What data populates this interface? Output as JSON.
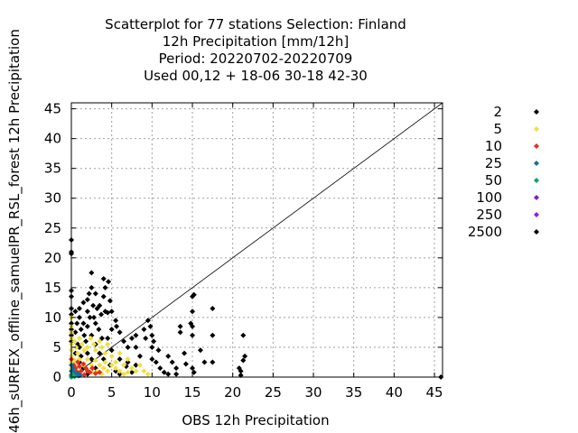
{
  "chart_data": {
    "type": "scatter",
    "title": [
      "Scatterplot for   77 stations Selection: Finland",
      "12h Precipitation [mm/12h]",
      "Period: 20220702-20220709",
      "Used  00,12  + 18-06 30-18 42-30"
    ],
    "xlabel": "OBS 12h Precipitation",
    "ylabel": "46h_sURFEX_offline_samuelPR_RSL_forest 12h Precipitation",
    "xlim": [
      0,
      46
    ],
    "ylim": [
      0,
      46
    ],
    "xticks": [
      0,
      5,
      10,
      15,
      20,
      25,
      30,
      35,
      40,
      45
    ],
    "yticks": [
      0,
      5,
      10,
      15,
      20,
      25,
      30,
      35,
      40,
      45
    ],
    "grid": true,
    "diagonal": true,
    "legend_placement": "right",
    "legend": [
      {
        "label": "2",
        "color": "#000000"
      },
      {
        "label": "5",
        "color": "#f0e040"
      },
      {
        "label": "10",
        "color": "#e03020"
      },
      {
        "label": "25",
        "color": "#1070a0"
      },
      {
        "label": "50",
        "color": "#10a070"
      },
      {
        "label": "100",
        "color": "#8020c0"
      },
      {
        "label": "250",
        "color": "#9020e0"
      },
      {
        "label": "2500",
        "color": "#000000"
      }
    ],
    "series": [
      {
        "level": "2",
        "color": "#000000",
        "points": [
          [
            0,
            23
          ],
          [
            0,
            21
          ],
          [
            0,
            20.7
          ],
          [
            0,
            14.5
          ],
          [
            0,
            13.5
          ],
          [
            0,
            11.5
          ],
          [
            0,
            10.5
          ],
          [
            0,
            9
          ],
          [
            0,
            8
          ],
          [
            0,
            7
          ],
          [
            0,
            6
          ],
          [
            0.5,
            11
          ],
          [
            0.7,
            9
          ],
          [
            0.5,
            7.5
          ],
          [
            1,
            11.5
          ],
          [
            1,
            10
          ],
          [
            1.2,
            8
          ],
          [
            1.5,
            12.5
          ],
          [
            1.5,
            9
          ],
          [
            1.6,
            7
          ],
          [
            2,
            13
          ],
          [
            2.2,
            14
          ],
          [
            2,
            11
          ],
          [
            2.3,
            10
          ],
          [
            2,
            8.5
          ],
          [
            2.5,
            17.5
          ],
          [
            2.5,
            15
          ],
          [
            2.7,
            12
          ],
          [
            2.8,
            10
          ],
          [
            2.5,
            7
          ],
          [
            3,
            14
          ],
          [
            3.2,
            11.5
          ],
          [
            3,
            9
          ],
          [
            3.4,
            8
          ],
          [
            3.5,
            12
          ],
          [
            3.7,
            10.5
          ],
          [
            4,
            16.5
          ],
          [
            4.2,
            15
          ],
          [
            4,
            13.5
          ],
          [
            4.2,
            11
          ],
          [
            4.5,
            10.8
          ],
          [
            4.8,
            12.8
          ],
          [
            4.6,
            16
          ],
          [
            5,
            11
          ],
          [
            5.5,
            9.5
          ],
          [
            5,
            8
          ],
          [
            3.8,
            6.5
          ],
          [
            4.5,
            6.5
          ],
          [
            5.6,
            8.5
          ],
          [
            6,
            7.5
          ],
          [
            6.5,
            6
          ],
          [
            7,
            5
          ],
          [
            7.5,
            6.5
          ],
          [
            8,
            7
          ],
          [
            8,
            5
          ],
          [
            8.5,
            3.5
          ],
          [
            9,
            8
          ],
          [
            9.2,
            6.5
          ],
          [
            9.5,
            9.5
          ],
          [
            9.8,
            8.5
          ],
          [
            10,
            7
          ],
          [
            10,
            5
          ],
          [
            10,
            3
          ],
          [
            10.5,
            2.5
          ],
          [
            10.2,
            6
          ],
          [
            10.8,
            4.5
          ],
          [
            11,
            1.5
          ],
          [
            11.5,
            0.8
          ],
          [
            12,
            3.5
          ],
          [
            12,
            0.5
          ],
          [
            12.5,
            2.5
          ],
          [
            13,
            0.5
          ],
          [
            13,
            1.5
          ],
          [
            13.5,
            8.5
          ],
          [
            13.5,
            7.5
          ],
          [
            14,
            4
          ],
          [
            14.2,
            2.2
          ],
          [
            15,
            13.5
          ],
          [
            15.2,
            13.8
          ],
          [
            15,
            11
          ],
          [
            14.8,
            9
          ],
          [
            15,
            8.5
          ],
          [
            15,
            7
          ],
          [
            15,
            1.5
          ],
          [
            15.2,
            0.8
          ],
          [
            16,
            4.5
          ],
          [
            16.5,
            2.5
          ],
          [
            17.5,
            11.5
          ],
          [
            17.5,
            7
          ],
          [
            17.5,
            2.5
          ],
          [
            20.8,
            1.5
          ],
          [
            21,
            1
          ],
          [
            21,
            0.3
          ],
          [
            21.3,
            7
          ],
          [
            21.5,
            3.5
          ],
          [
            21.3,
            2.8
          ],
          [
            45.8,
            0
          ],
          [
            1,
            5
          ],
          [
            2,
            4
          ],
          [
            3,
            5.5
          ],
          [
            3.5,
            4
          ],
          [
            4,
            3
          ],
          [
            5,
            4.5
          ],
          [
            6,
            3
          ],
          [
            7,
            2.5
          ],
          [
            2.5,
            3
          ],
          [
            1.8,
            6
          ],
          [
            0.8,
            5.5
          ],
          [
            1.2,
            3.5
          ],
          [
            0.5,
            4
          ],
          [
            1,
            2.5
          ],
          [
            4.8,
            2
          ],
          [
            5.5,
            1
          ],
          [
            6,
            0.5
          ],
          [
            6.8,
            1.8
          ],
          [
            7.5,
            0.8
          ],
          [
            8,
            2
          ],
          [
            3,
            1.5
          ],
          [
            2,
            0.5
          ],
          [
            1.5,
            1.5
          ]
        ]
      },
      {
        "level": "5",
        "color": "#f0e040",
        "points": [
          [
            0,
            10
          ],
          [
            0,
            8.5
          ],
          [
            0,
            7.5
          ],
          [
            0,
            6.5
          ],
          [
            0,
            5.5
          ],
          [
            0,
            4.5
          ],
          [
            0,
            3.5
          ],
          [
            0,
            2.5
          ],
          [
            0,
            1.5
          ],
          [
            0,
            0.5
          ],
          [
            0.4,
            6
          ],
          [
            0.6,
            5
          ],
          [
            0.8,
            4
          ],
          [
            1,
            6.5
          ],
          [
            1.3,
            5.5
          ],
          [
            1.6,
            4.5
          ],
          [
            2,
            5
          ],
          [
            2.4,
            6.5
          ],
          [
            2.8,
            5.5
          ],
          [
            3,
            4.5
          ],
          [
            3.5,
            6
          ],
          [
            3.8,
            5
          ],
          [
            4.2,
            4
          ],
          [
            4.5,
            5.5
          ],
          [
            5,
            3.5
          ],
          [
            5.5,
            2.5
          ],
          [
            6,
            4
          ],
          [
            6.5,
            2
          ],
          [
            7,
            3
          ],
          [
            7.5,
            1.5
          ],
          [
            8,
            1
          ],
          [
            8.5,
            2
          ],
          [
            9,
            1
          ],
          [
            9.5,
            0.5
          ],
          [
            1,
            3
          ],
          [
            1.5,
            2
          ],
          [
            2,
            3
          ],
          [
            2.5,
            2
          ],
          [
            3,
            2.8
          ],
          [
            3.5,
            2
          ],
          [
            4,
            1.5
          ],
          [
            4.5,
            1
          ],
          [
            5,
            2
          ],
          [
            5.5,
            1.5
          ],
          [
            6,
            1
          ],
          [
            6.5,
            0.5
          ],
          [
            7,
            0.8
          ],
          [
            0.4,
            2.8
          ],
          [
            0.8,
            1.8
          ],
          [
            1.2,
            1
          ],
          [
            2,
            1.2
          ],
          [
            2.6,
            0.8
          ],
          [
            3.2,
            1
          ],
          [
            3.8,
            0.5
          ],
          [
            4.2,
            2.5
          ]
        ]
      },
      {
        "level": "10",
        "color": "#e03020",
        "points": [
          [
            0,
            3
          ],
          [
            0.3,
            2
          ],
          [
            0.5,
            1.5
          ],
          [
            0.8,
            2.5
          ],
          [
            1,
            1.8
          ],
          [
            1.2,
            1
          ],
          [
            1.5,
            2.2
          ],
          [
            1.8,
            1.5
          ],
          [
            2,
            1
          ],
          [
            2.3,
            0.8
          ],
          [
            2.6,
            1.5
          ],
          [
            3,
            0.6
          ],
          [
            1,
            0.5
          ],
          [
            1.6,
            0.4
          ],
          [
            3.5,
            0.8
          ],
          [
            0.6,
            1
          ]
        ]
      },
      {
        "level": "25",
        "color": "#1070a0",
        "points": [
          [
            0,
            2
          ],
          [
            0,
            1
          ],
          [
            0,
            0.3
          ],
          [
            0.2,
            1.5
          ],
          [
            0.3,
            0.8
          ],
          [
            0.5,
            0.3
          ],
          [
            0.7,
            0.6
          ],
          [
            0.9,
            0.2
          ],
          [
            1.1,
            0.3
          ]
        ]
      },
      {
        "level": "50",
        "color": "#10a070",
        "points": [
          [
            0,
            0
          ],
          [
            0.2,
            0.2
          ],
          [
            0.4,
            0.1
          ],
          [
            0.1,
            0.5
          ]
        ]
      }
    ]
  }
}
